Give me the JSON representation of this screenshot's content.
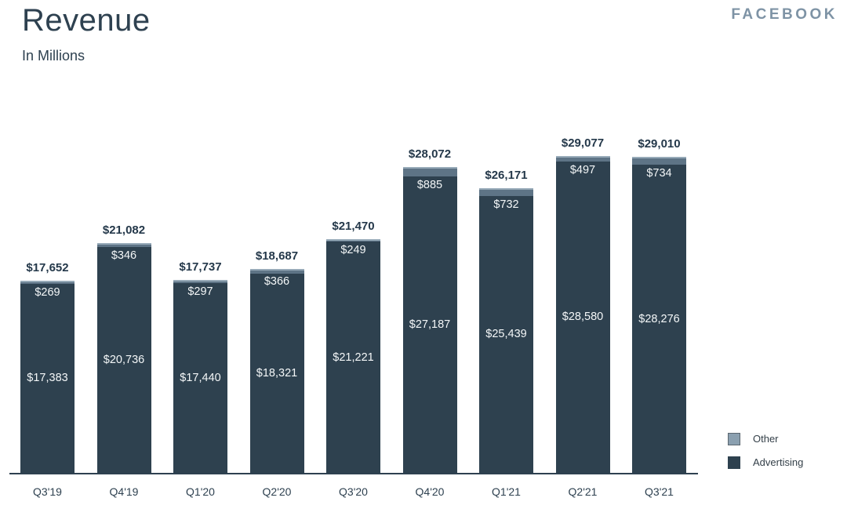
{
  "header": {
    "title": "Revenue",
    "subtitle": "In Millions",
    "brand": "FACEBOOK"
  },
  "legend": {
    "position": "bottom-right",
    "items": [
      {
        "label": "Other",
        "color": "#8ba0b0"
      },
      {
        "label": "Advertising",
        "color": "#2e414f"
      }
    ]
  },
  "colors": {
    "advertising_bar": "#2e414f",
    "other_segment": "#5e7486",
    "other_segment_highlight": "#97aab8",
    "title_text": "#2e4150",
    "brand_text": "#7e93a5",
    "bar_inner_text": "#f4f7f8",
    "total_label_text": "#24384a",
    "axis_line": "#2e4150"
  },
  "chart_data": {
    "type": "bar",
    "stacked": true,
    "title": "Revenue",
    "subtitle": "In Millions",
    "unit": "USD millions",
    "categories": [
      "Q3'19",
      "Q4'19",
      "Q1'20",
      "Q2'20",
      "Q3'20",
      "Q4'20",
      "Q1'21",
      "Q2'21",
      "Q3'21"
    ],
    "series": [
      {
        "name": "Advertising",
        "color": "#2e414f",
        "values": [
          17383,
          20736,
          17440,
          18321,
          21221,
          27187,
          25439,
          28580,
          28276
        ],
        "labels": [
          "$17,383",
          "$20,736",
          "$17,440",
          "$18,321",
          "$21,221",
          "$27,187",
          "$25,439",
          "$28,580",
          "$28,276"
        ]
      },
      {
        "name": "Other",
        "color": "#5e7486",
        "values": [
          269,
          346,
          297,
          366,
          249,
          885,
          732,
          497,
          734
        ],
        "labels": [
          "$269",
          "$346",
          "$297",
          "$366",
          "$249",
          "$885",
          "$732",
          "$497",
          "$734"
        ]
      }
    ],
    "totals": [
      17652,
      21082,
      17737,
      18687,
      21470,
      28072,
      26171,
      29077,
      29010
    ],
    "total_labels": [
      "$17,652",
      "$21,082",
      "$17,737",
      "$18,687",
      "$21,470",
      "$28,072",
      "$26,171",
      "$29,077",
      "$29,010"
    ],
    "xlabel": "",
    "ylabel": "",
    "ylim": [
      0,
      31000
    ],
    "grid": false,
    "y_axis_visible": false,
    "x_axis_line": true,
    "legend_position": "bottom-right"
  }
}
